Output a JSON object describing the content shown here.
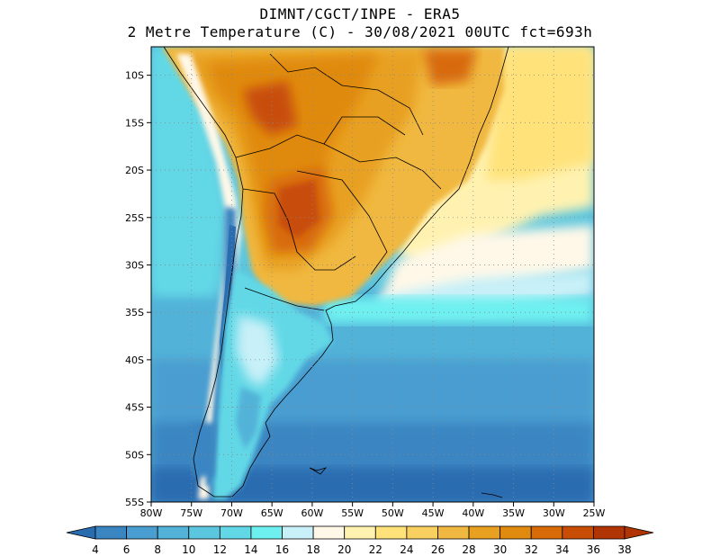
{
  "title": {
    "line1": "DIMNT/CGCT/INPE -  ERA5",
    "line2": "2 Metre Temperature (C) -  30/08/2021 00UTC fct=693h"
  },
  "map": {
    "lat_labels": [
      "10S",
      "15S",
      "20S",
      "25S",
      "30S",
      "35S",
      "40S",
      "45S",
      "50S",
      "55S"
    ],
    "lon_labels": [
      "80W",
      "75W",
      "70W",
      "65W",
      "60W",
      "55W",
      "50W",
      "45W",
      "40W",
      "35W",
      "30W",
      "25W"
    ],
    "lon_range": [
      -80,
      -25
    ],
    "lat_range": [
      -55,
      -7
    ],
    "grid": "dotted"
  },
  "colorbar": {
    "labels": [
      "4",
      "6",
      "8",
      "10",
      "12",
      "14",
      "16",
      "18",
      "20",
      "22",
      "24",
      "26",
      "28",
      "30",
      "32",
      "34",
      "36",
      "38"
    ],
    "colors": [
      "#2a6cb0",
      "#3a86c2",
      "#4a9dd0",
      "#52b2d8",
      "#5cc6de",
      "#62d8e6",
      "#6ef0f0",
      "#c8f0f8",
      "#fff8e8",
      "#fff2b0",
      "#ffe27a",
      "#f8d060",
      "#f0b840",
      "#e8a020",
      "#e08a10",
      "#d86a08",
      "#c84e08",
      "#b03404"
    ]
  },
  "colors": {
    "ocean_cold": "#2a6cb0",
    "ocean_mid": "#4ab0d8",
    "ocean_cyan": "#62d8e6",
    "land_hot": "#d0661a",
    "land_warm": "#f0b840"
  }
}
